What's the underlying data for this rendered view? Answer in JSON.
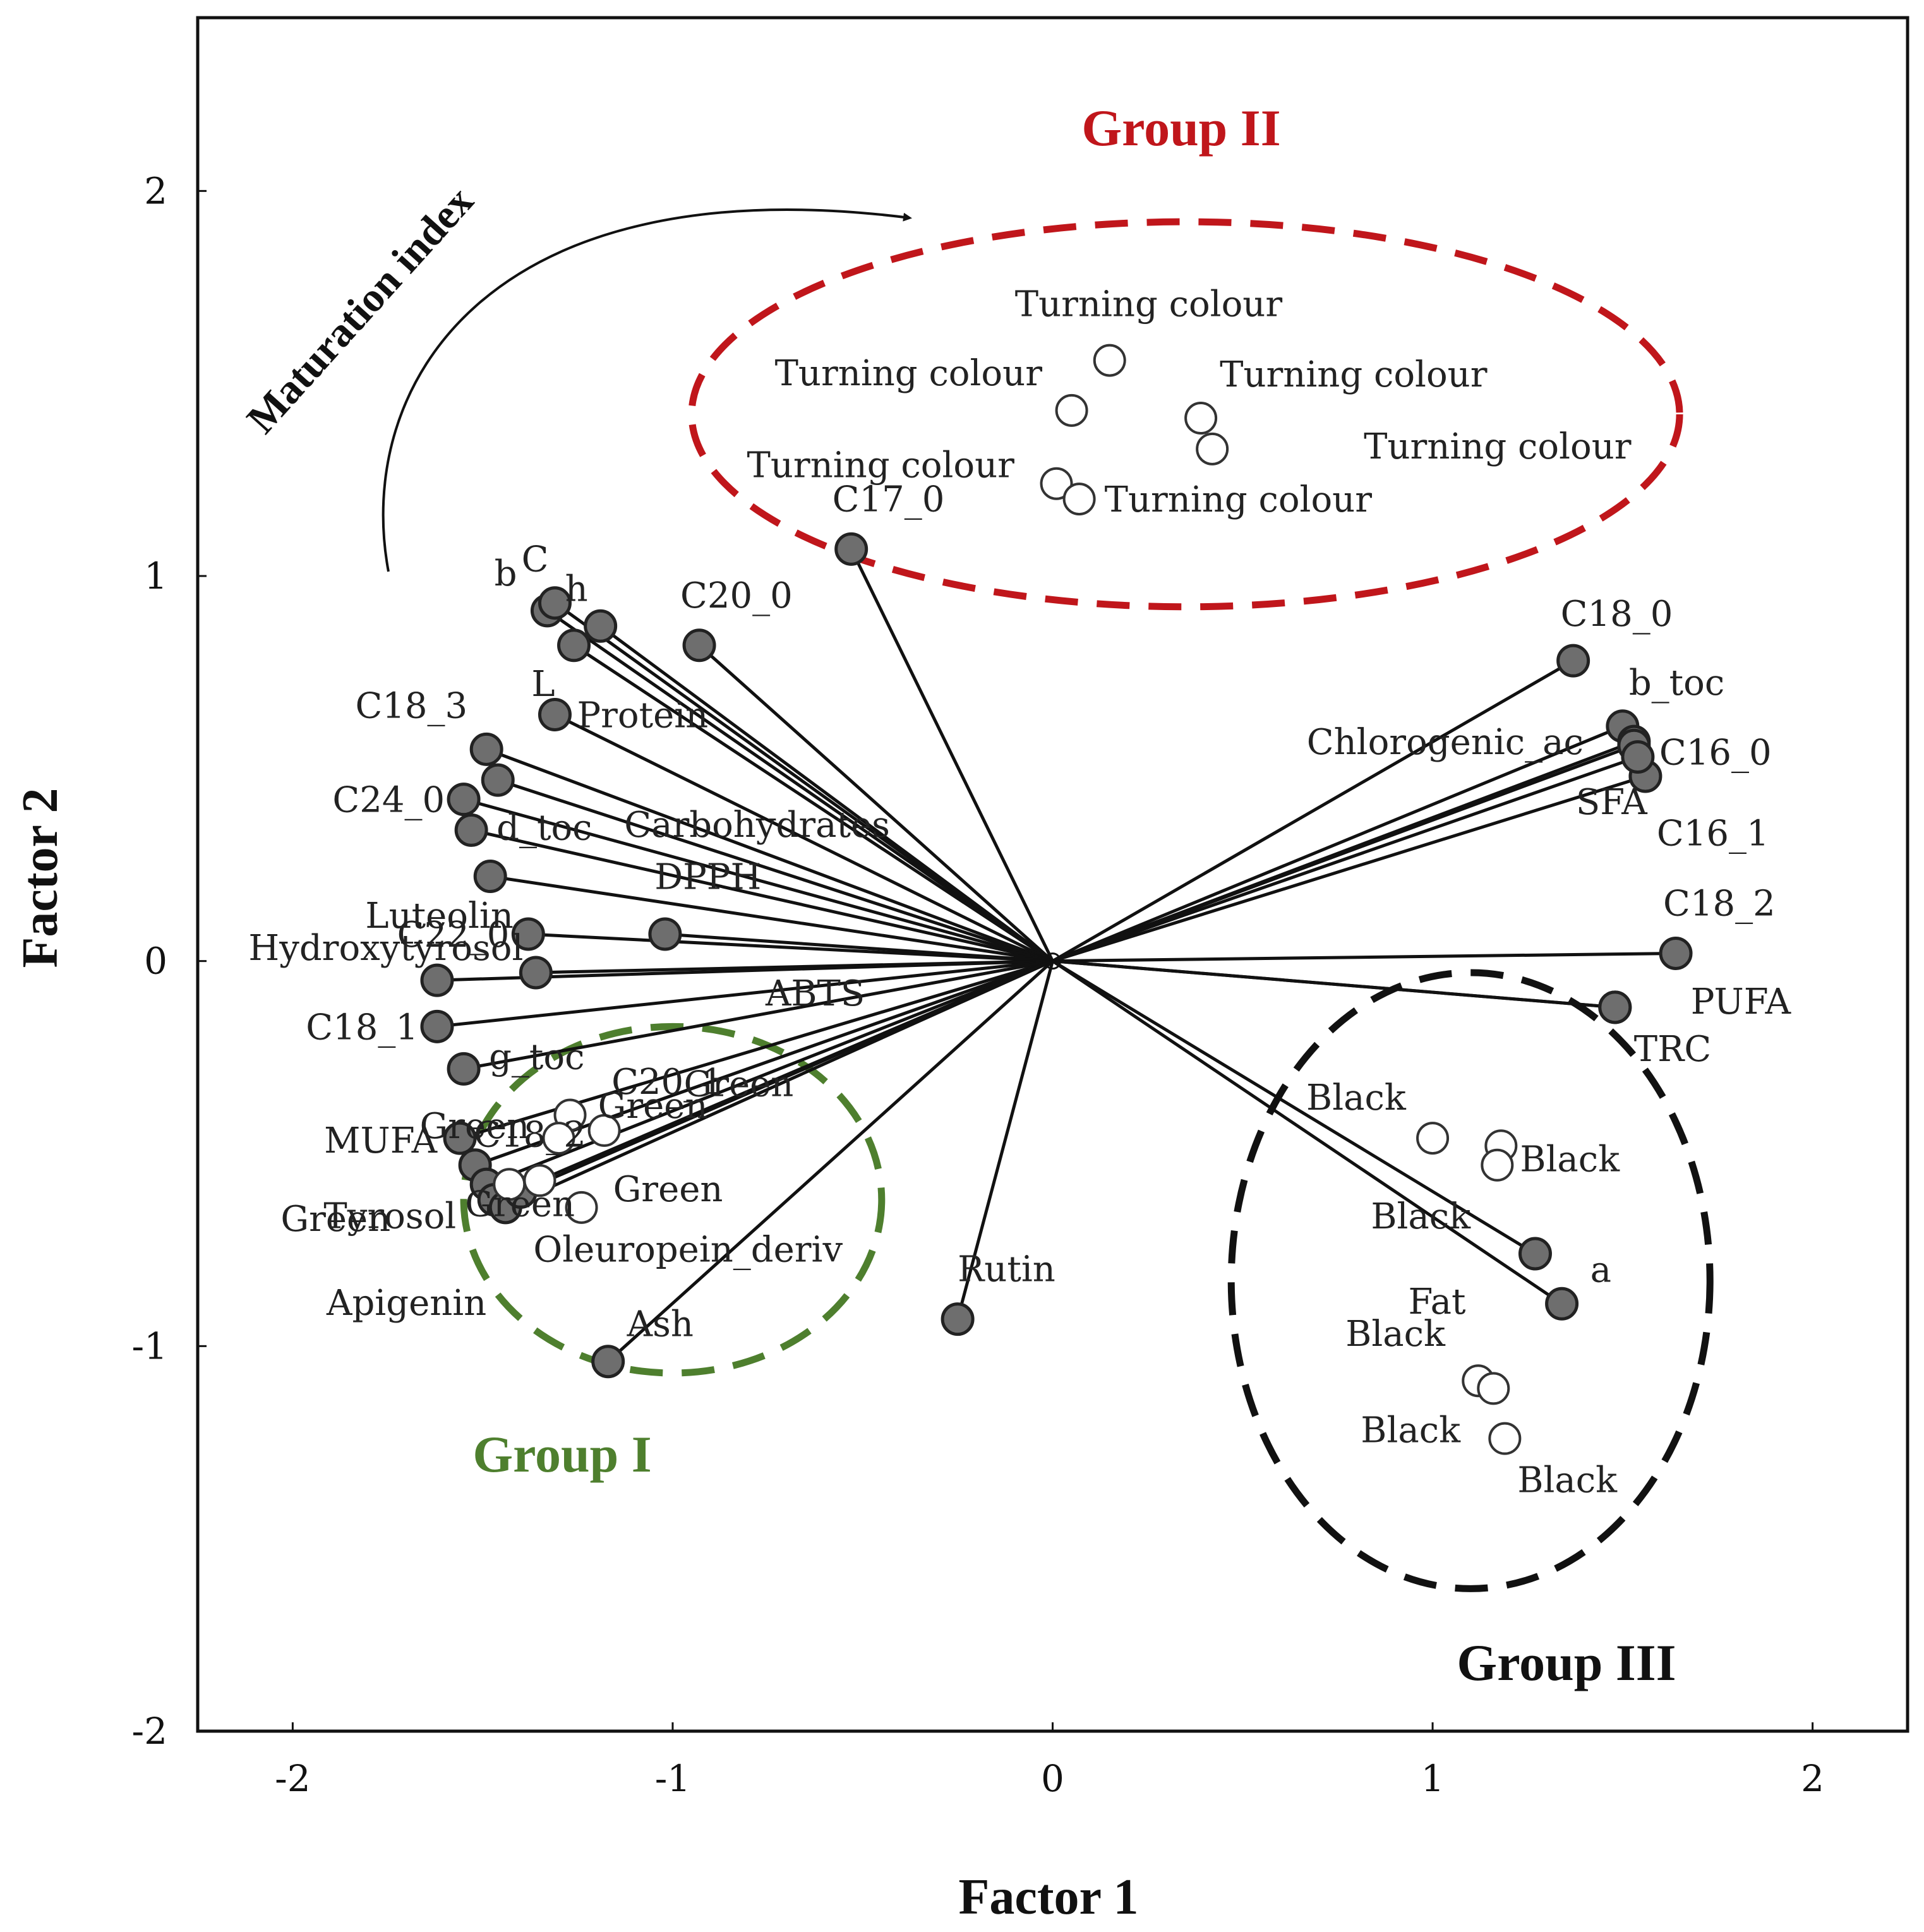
{
  "chart_data": {
    "type": "scatter",
    "subtype": "PCA biplot",
    "xlabel": "Factor 1",
    "ylabel": "Factor 2",
    "xlim": [
      -2.25,
      2.25
    ],
    "ylim": [
      -2.0,
      2.45
    ],
    "x_ticks": [
      -2,
      -1,
      0,
      1,
      2
    ],
    "y_ticks": [
      -2,
      -1,
      0,
      1,
      2
    ],
    "x_tick_labels": [
      "-2",
      "-1",
      "0",
      "1",
      "2"
    ],
    "y_tick_labels": [
      "-2",
      "-1",
      "0",
      "1",
      "2"
    ],
    "grid": false,
    "annotation": "Maturation index",
    "variables": [
      {
        "name": "b",
        "label": "b",
        "x": -1.33,
        "y": 0.91
      },
      {
        "name": "C",
        "label": "C",
        "x": -1.31,
        "y": 0.93
      },
      {
        "name": "h",
        "label": "h",
        "x": -1.19,
        "y": 0.87
      },
      {
        "name": "L",
        "label": "L",
        "x": -1.26,
        "y": 0.82
      },
      {
        "name": "C20_0",
        "label": "C20_0",
        "x": -0.93,
        "y": 0.82
      },
      {
        "name": "C17_0",
        "label": "C17_0",
        "x": -0.53,
        "y": 1.07
      },
      {
        "name": "Protein",
        "label": "Protein",
        "x": -1.31,
        "y": 0.64
      },
      {
        "name": "C18_3",
        "label": "C18_3",
        "x": -1.49,
        "y": 0.55
      },
      {
        "name": "Carbohydrates",
        "label": "Carbohydrates",
        "x": -1.46,
        "y": 0.47
      },
      {
        "name": "C24_0",
        "label": "C24_0",
        "x": -1.55,
        "y": 0.42
      },
      {
        "name": "d_toc",
        "label": "d_toc",
        "x": -1.53,
        "y": 0.34
      },
      {
        "name": "DPPH",
        "label": "DPPH",
        "x": -1.48,
        "y": 0.22
      },
      {
        "name": "C22_0",
        "label": "C22_0",
        "x": -1.38,
        "y": 0.07
      },
      {
        "name": "Luteolin",
        "label": "Luteolin",
        "x": -1.02,
        "y": 0.07
      },
      {
        "name": "Hydroxytyrosol",
        "label": "Hydroxytyrosol",
        "x": -1.36,
        "y": -0.03
      },
      {
        "name": "ABTS",
        "label": "ABTS",
        "x": -1.62,
        "y": -0.05
      },
      {
        "name": "C18_1",
        "label": "C18_1",
        "x": -1.62,
        "y": -0.17
      },
      {
        "name": "g_toc",
        "label": "g_toc",
        "x": -1.55,
        "y": -0.28
      },
      {
        "name": "C20_1",
        "label": "C20_1",
        "x": -1.56,
        "y": -0.46
      },
      {
        "name": "MUFA",
        "label": "MUFA",
        "x": -1.52,
        "y": -0.53
      },
      {
        "name": "C18_2 (grp)",
        "label": "C18_2",
        "x": -1.49,
        "y": -0.58
      },
      {
        "name": "Tyrosol",
        "label": "Tyrosol",
        "x": -1.47,
        "y": -0.62
      },
      {
        "name": "Apigenin",
        "label": "Apigenin",
        "x": -1.44,
        "y": -0.64
      },
      {
        "name": "Oleuropein_deriv",
        "label": "Oleuropein_deriv",
        "x": -1.4,
        "y": -0.6
      },
      {
        "name": "Ash",
        "label": "Ash",
        "x": -1.17,
        "y": -1.04
      },
      {
        "name": "Rutin",
        "label": "Rutin",
        "x": -0.25,
        "y": -0.93
      },
      {
        "name": "C18_0",
        "label": "C18_0",
        "x": 1.37,
        "y": 0.78
      },
      {
        "name": "b_toc",
        "label": "b_toc",
        "x": 1.5,
        "y": 0.61
      },
      {
        "name": "Chlorogenic_ac",
        "label": "Chlorogenic_ac",
        "x": 1.53,
        "y": 0.57
      },
      {
        "name": "C16_0",
        "label": "C16_0",
        "x": 1.53,
        "y": 0.56
      },
      {
        "name": "SFA",
        "label": "SFA",
        "x": 1.56,
        "y": 0.48
      },
      {
        "name": "C16_1",
        "label": "C16_1",
        "x": 1.54,
        "y": 0.53
      },
      {
        "name": "C18_2",
        "label": "C18_2",
        "x": 1.64,
        "y": 0.02
      },
      {
        "name": "PUFA",
        "label": "PUFA",
        "x": 1.48,
        "y": -0.12
      },
      {
        "name": "TRC",
        "label": "TRC",
        "x": 1.48,
        "y": -0.12
      },
      {
        "name": "Fat",
        "label": "Fat",
        "x": 1.27,
        "y": -0.76
      },
      {
        "name": "a",
        "label": "a",
        "x": 1.34,
        "y": -0.89
      }
    ],
    "observations": [
      {
        "group": "Turning colour",
        "label": "Turning colour",
        "x": 0.15,
        "y": 1.56
      },
      {
        "group": "Turning colour",
        "label": "Turning colour",
        "x": 0.05,
        "y": 1.43
      },
      {
        "group": "Turning colour",
        "label": "Turning colour",
        "x": 0.39,
        "y": 1.41
      },
      {
        "group": "Turning colour",
        "label": "Turning colour",
        "x": 0.42,
        "y": 1.33
      },
      {
        "group": "Turning colour",
        "label": "Turning colour",
        "x": 0.01,
        "y": 1.24
      },
      {
        "group": "Turning colour",
        "label": "Turning colour",
        "x": 0.07,
        "y": 1.2
      },
      {
        "group": "Green",
        "label": "Green",
        "x": -1.27,
        "y": -0.4
      },
      {
        "group": "Green",
        "label": "Green",
        "x": -1.18,
        "y": -0.44
      },
      {
        "group": "Green",
        "label": "Green",
        "x": -1.3,
        "y": -0.46
      },
      {
        "group": "Green",
        "label": "Green",
        "x": -1.35,
        "y": -0.57
      },
      {
        "group": "Green",
        "label": "Green",
        "x": -1.43,
        "y": -0.58
      },
      {
        "group": "Green",
        "label": "Green",
        "x": -1.24,
        "y": -0.64
      },
      {
        "group": "Black",
        "label": "Black",
        "x": 1.0,
        "y": -0.46
      },
      {
        "group": "Black",
        "label": "Black",
        "x": 1.18,
        "y": -0.48
      },
      {
        "group": "Black",
        "label": "Black",
        "x": 1.17,
        "y": -0.53
      },
      {
        "group": "Black",
        "label": "Black",
        "x": 1.12,
        "y": -1.09
      },
      {
        "group": "Black",
        "label": "Black",
        "x": 1.16,
        "y": -1.11
      },
      {
        "group": "Black",
        "label": "Black",
        "x": 1.19,
        "y": -1.24
      }
    ],
    "groups": [
      {
        "name": "Group I",
        "label": "Group I",
        "color": "#4e7f2e",
        "center": [
          -1.0,
          -0.62
        ],
        "radius": [
          0.55,
          0.45
        ]
      },
      {
        "name": "Group II",
        "label": "Group II",
        "color": "#c0161b",
        "center": [
          0.35,
          1.42
        ],
        "radius": [
          1.3,
          0.5
        ]
      },
      {
        "name": "Group III",
        "label": "Group III",
        "color": "#111111",
        "center": [
          1.1,
          -0.83
        ],
        "radius": [
          0.63,
          0.8
        ]
      }
    ]
  }
}
